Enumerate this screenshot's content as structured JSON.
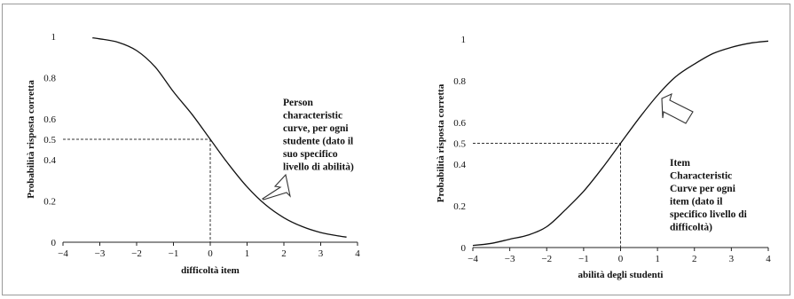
{
  "chart_data": [
    {
      "type": "line",
      "title": "",
      "xlabel": "difficoltà item",
      "ylabel": "Probabilità risposta corretta",
      "xlim": [
        -4,
        4
      ],
      "ylim": [
        0,
        1
      ],
      "x_ticks": [
        "−4",
        "−3",
        "−2",
        "−1",
        "0",
        "1",
        "2",
        "3",
        "4"
      ],
      "y_ticks": [
        "0",
        "0.2",
        "0.4",
        "0.5",
        "0.6",
        "0.8",
        "1"
      ],
      "grid": false,
      "series": [
        {
          "x": [
            -3.2,
            -3.0,
            -2.5,
            -2.0,
            -1.5,
            -1.0,
            -0.5,
            0,
            0.5,
            1.0,
            1.5,
            2.0,
            2.5,
            3.0,
            3.5,
            3.7
          ],
          "y": [
            0.993,
            0.988,
            0.971,
            0.931,
            0.852,
            0.731,
            0.622,
            0.5,
            0.378,
            0.269,
            0.182,
            0.119,
            0.076,
            0.047,
            0.03,
            0.025
          ]
        }
      ],
      "reference_point": {
        "x": 0,
        "y": 0.5
      },
      "annotation": [
        "Person",
        "characteristic",
        "curve, per ogni",
        "studente (dato il",
        "suo specifico",
        "livello di abilità)"
      ]
    },
    {
      "type": "line",
      "title": "",
      "xlabel": "abilità degli studenti",
      "ylabel": "Probabilità risposta corretta",
      "xlim": [
        -4,
        4
      ],
      "ylim": [
        0,
        1
      ],
      "x_ticks": [
        "−4",
        "−3",
        "−2",
        "−1",
        "0",
        "1",
        "2",
        "3",
        "4"
      ],
      "y_ticks": [
        "0",
        "0.2",
        "0.4",
        "0.5",
        "0.6",
        "0.8",
        "1"
      ],
      "grid": false,
      "series": [
        {
          "x": [
            -4.0,
            -3.5,
            -3.0,
            -2.5,
            -2.0,
            -1.5,
            -1.0,
            -0.5,
            0,
            0.5,
            1.0,
            1.5,
            2.0,
            2.5,
            3.0,
            3.5,
            4.0
          ],
          "y": [
            0.01,
            0.02,
            0.04,
            0.06,
            0.1,
            0.18,
            0.27,
            0.38,
            0.5,
            0.62,
            0.73,
            0.82,
            0.88,
            0.93,
            0.96,
            0.98,
            0.99
          ]
        }
      ],
      "reference_point": {
        "x": 0,
        "y": 0.5
      },
      "annotation": [
        "Item",
        "Characteristic",
        "Curve per ogni",
        "item (dato il",
        "specifico livello di",
        "difficoltà)"
      ]
    }
  ]
}
